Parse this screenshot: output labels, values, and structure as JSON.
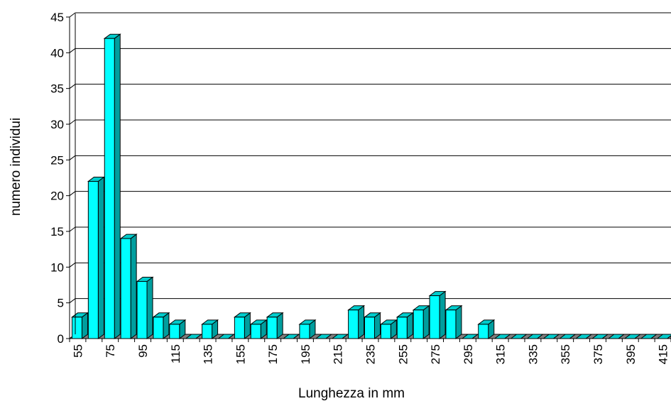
{
  "chart_data": {
    "type": "bar",
    "xlabel": "Lunghezza in mm",
    "ylabel": "numero individui",
    "ylim": [
      0,
      45
    ],
    "yticks": [
      0,
      5,
      10,
      15,
      20,
      25,
      30,
      35,
      40,
      45
    ],
    "grid": true,
    "categories": [
      55,
      65,
      75,
      85,
      95,
      105,
      115,
      125,
      135,
      145,
      155,
      165,
      175,
      185,
      195,
      205,
      215,
      225,
      235,
      245,
      255,
      265,
      275,
      285,
      295,
      305,
      315,
      325,
      335,
      345,
      355,
      365,
      375,
      385,
      395,
      405,
      415
    ],
    "xtick_labels": [
      "55",
      "75",
      "95",
      "115",
      "135",
      "155",
      "175",
      "195",
      "215",
      "235",
      "255",
      "275",
      "295",
      "315",
      "335",
      "355",
      "375",
      "395",
      "415"
    ],
    "values": [
      3,
      22,
      42,
      14,
      8,
      3,
      2,
      0,
      2,
      0,
      3,
      2,
      3,
      0,
      2,
      0,
      0,
      4,
      3,
      2,
      3,
      4,
      6,
      4,
      0,
      2,
      0,
      0,
      0,
      0,
      0,
      0,
      0,
      0,
      0,
      0,
      0
    ],
    "colors": {
      "bar_front": "#00FFFF",
      "bar_side": "#009E9E",
      "bar_top": "#00CCCC",
      "floor": "#7F7F7F"
    }
  }
}
